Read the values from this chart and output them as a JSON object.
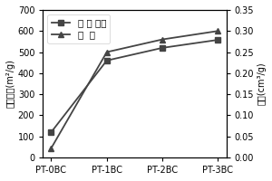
{
  "x_labels": [
    "PT-0BC",
    "PT-1BC",
    "PT-2BC",
    "PT-3BC"
  ],
  "surface_area": [
    120,
    460,
    520,
    558
  ],
  "pore_volume": [
    0.022,
    0.25,
    0.28,
    0.3
  ],
  "left_ylim": [
    0,
    700
  ],
  "left_yticks": [
    0,
    100,
    200,
    300,
    400,
    500,
    600,
    700
  ],
  "right_ylim": [
    0.0,
    0.35
  ],
  "right_yticks": [
    0.0,
    0.05,
    0.1,
    0.15,
    0.2,
    0.25,
    0.3,
    0.35
  ],
  "line_color": "#444444",
  "marker1": "s",
  "marker2": "^",
  "legend1": "比 表 面积",
  "legend2": "孔  容",
  "left_ylabel_chars": [
    "比",
    "表",
    "面",
    "积",
    "(m²",
    "/g)"
  ],
  "right_ylabel_chars": [
    "孔",
    "容",
    "(cm³",
    "/g)"
  ],
  "linewidth": 1.3,
  "markersize": 5,
  "fontsize_tick": 7,
  "fontsize_label": 7,
  "fontsize_legend": 7.5,
  "bg_color": "#f0f0f0"
}
